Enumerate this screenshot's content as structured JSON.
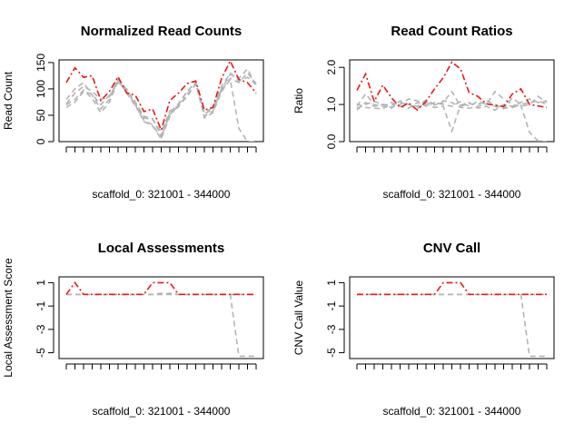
{
  "chart_data": [
    {
      "type": "line",
      "title": "Normalized Read Counts",
      "xlabel": "scaffold_0: 321001 - 344000",
      "ylabel": "Read Count",
      "ylim": [
        0,
        155
      ],
      "yticks": [
        0,
        50,
        100,
        150
      ],
      "x": [
        1,
        2,
        3,
        4,
        5,
        6,
        7,
        8,
        9,
        10,
        11,
        12,
        13,
        14,
        15,
        16,
        17,
        18,
        19,
        20,
        21,
        22,
        23
      ],
      "series": [
        {
          "role": "sample",
          "color": "#e41a1c",
          "values": [
            112,
            140,
            122,
            125,
            78,
            95,
            123,
            92,
            88,
            57,
            62,
            22,
            78,
            92,
            110,
            115,
            60,
            65,
            120,
            153,
            118,
            112,
            92
          ]
        },
        {
          "role": "reference",
          "color": "#b4b4b4",
          "values": [
            80,
            100,
            112,
            88,
            62,
            80,
            120,
            98,
            75,
            48,
            44,
            12,
            55,
            72,
            95,
            112,
            52,
            62,
            100,
            128,
            120,
            138,
            105
          ]
        },
        {
          "role": "reference",
          "color": "#b4b4b4",
          "values": [
            65,
            75,
            95,
            90,
            70,
            88,
            112,
            100,
            72,
            45,
            42,
            18,
            58,
            68,
            85,
            110,
            48,
            58,
            98,
            120,
            112,
            130,
            110
          ]
        },
        {
          "role": "reference",
          "color": "#b4b4b4",
          "values": [
            72,
            92,
            105,
            95,
            80,
            85,
            118,
            92,
            68,
            40,
            32,
            8,
            52,
            66,
            90,
            108,
            55,
            65,
            105,
            130,
            115,
            122,
            108
          ]
        },
        {
          "role": "reference",
          "color": "#b4b4b4",
          "values": [
            70,
            80,
            98,
            82,
            55,
            75,
            115,
            95,
            70,
            38,
            30,
            5,
            48,
            70,
            95,
            114,
            45,
            55,
            95,
            118,
            25,
            0,
            0
          ]
        }
      ]
    },
    {
      "type": "line",
      "title": "Read Count Ratios",
      "xlabel": "scaffold_0: 321001 - 344000",
      "ylabel": "Ratio",
      "ylim": [
        0,
        2.2
      ],
      "yticks": [
        0.0,
        1.0,
        2.0
      ],
      "ytick_labels": [
        "0.0",
        "1.0",
        "2.0"
      ],
      "x": [
        1,
        2,
        3,
        4,
        5,
        6,
        7,
        8,
        9,
        10,
        11,
        12,
        13,
        14,
        15,
        16,
        17,
        18,
        19,
        20,
        21,
        22,
        23
      ],
      "series": [
        {
          "role": "sample",
          "color": "#e41a1c",
          "values": [
            1.38,
            1.82,
            1.08,
            1.52,
            1.18,
            0.92,
            1.04,
            0.85,
            1.08,
            1.42,
            1.72,
            2.14,
            1.96,
            1.32,
            1.22,
            1.02,
            0.98,
            0.94,
            1.28,
            1.42,
            1.0,
            0.96,
            0.92
          ]
        },
        {
          "role": "reference",
          "color": "#b4b4b4",
          "values": [
            0.95,
            1.28,
            1.0,
            0.95,
            0.9,
            1.1,
            1.0,
            0.95,
            1.12,
            1.0,
            1.05,
            1.35,
            0.95,
            1.02,
            1.0,
            1.1,
            1.0,
            0.88,
            1.18,
            1.0,
            1.05,
            1.1,
            1.0
          ]
        },
        {
          "role": "reference",
          "color": "#b4b4b4",
          "values": [
            0.85,
            1.05,
            0.95,
            1.0,
            0.92,
            1.0,
            1.15,
            1.1,
            0.95,
            1.05,
            1.0,
            0.95,
            1.08,
            0.95,
            1.08,
            1.0,
            1.35,
            1.15,
            1.0,
            0.95,
            1.0,
            1.22,
            1.05
          ]
        },
        {
          "role": "reference",
          "color": "#b4b4b4",
          "values": [
            1.02,
            0.92,
            0.9,
            0.88,
            1.05,
            0.95,
            0.9,
            1.05,
            1.0,
            0.92,
            0.95,
            0.28,
            0.98,
            1.05,
            0.9,
            0.95,
            0.85,
            1.0,
            0.95,
            1.05,
            1.15,
            1.05,
            1.1
          ]
        },
        {
          "role": "reference",
          "color": "#b4b4b4",
          "values": [
            0.9,
            1.0,
            1.08,
            1.0,
            0.98,
            1.05,
            1.0,
            0.9,
            1.05,
            0.98,
            1.1,
            1.05,
            0.92,
            0.9,
            0.95,
            1.02,
            0.95,
            0.9,
            0.92,
            0.98,
            0.25,
            0.02,
            0.0
          ]
        }
      ]
    },
    {
      "type": "line",
      "title": "Local Assessments",
      "xlabel": "scaffold_0: 321001 - 344000",
      "ylabel": "Local Assessment Score",
      "ylim": [
        -5.5,
        1.5
      ],
      "yticks": [
        1,
        -1,
        -3,
        -5
      ],
      "ytick_labels": [
        "1",
        "-1",
        "-3",
        "-5"
      ],
      "x": [
        1,
        2,
        3,
        4,
        5,
        6,
        7,
        8,
        9,
        10,
        11,
        12,
        13,
        14,
        15,
        16,
        17,
        18,
        19,
        20,
        21,
        22,
        23
      ],
      "series": [
        {
          "role": "sample",
          "color": "#e41a1c",
          "values": [
            0,
            1,
            0,
            0,
            0,
            0,
            0,
            0,
            0,
            0,
            1,
            1,
            1,
            0,
            0,
            0,
            0,
            0,
            0,
            0,
            0,
            0,
            0
          ]
        },
        {
          "role": "reference",
          "color": "#b4b4b4",
          "values": [
            0,
            0,
            0,
            0,
            0,
            0,
            0,
            0,
            0,
            0,
            0,
            0.1,
            0,
            0,
            0,
            0,
            0,
            0,
            0,
            0,
            0,
            0,
            0
          ]
        },
        {
          "role": "reference",
          "color": "#b4b4b4",
          "values": [
            0,
            0,
            0,
            0,
            0,
            0,
            0,
            0,
            0,
            0,
            0,
            0,
            0.1,
            0,
            0,
            0,
            0,
            0,
            0,
            0,
            0,
            0,
            0
          ]
        },
        {
          "role": "reference",
          "color": "#b4b4b4",
          "values": [
            0,
            0,
            0,
            0,
            0,
            0,
            0,
            0,
            0,
            0,
            0,
            0,
            0,
            0,
            0,
            0,
            0,
            0,
            0,
            0,
            0,
            0,
            0
          ]
        },
        {
          "role": "reference",
          "color": "#b4b4b4",
          "values": [
            0,
            0,
            0,
            0,
            0,
            0,
            0,
            0,
            0,
            0,
            0,
            0,
            0,
            0,
            0,
            0,
            0,
            0,
            0,
            0,
            -5.3,
            -5.3,
            -5.3
          ]
        }
      ]
    },
    {
      "type": "line",
      "title": "CNV Call",
      "xlabel": "scaffold_0: 321001 - 344000",
      "ylabel": "CNV Call Value",
      "ylim": [
        -5.5,
        1.5
      ],
      "yticks": [
        1,
        -1,
        -3,
        -5
      ],
      "ytick_labels": [
        "1",
        "-1",
        "-3",
        "-5"
      ],
      "x": [
        1,
        2,
        3,
        4,
        5,
        6,
        7,
        8,
        9,
        10,
        11,
        12,
        13,
        14,
        15,
        16,
        17,
        18,
        19,
        20,
        21,
        22,
        23
      ],
      "series": [
        {
          "role": "sample",
          "color": "#e41a1c",
          "values": [
            0,
            0,
            0,
            0,
            0,
            0,
            0,
            0,
            0,
            0,
            1,
            1,
            1,
            0,
            0,
            0,
            0,
            0,
            0,
            0,
            0,
            0,
            0
          ]
        },
        {
          "role": "reference",
          "color": "#b4b4b4",
          "values": [
            0,
            0,
            0,
            0,
            0,
            0,
            0,
            0,
            0,
            0,
            0,
            0,
            0,
            0,
            0,
            0,
            0,
            0,
            0,
            0,
            0,
            0,
            0
          ]
        },
        {
          "role": "reference",
          "color": "#b4b4b4",
          "values": [
            0,
            0,
            0,
            0,
            0,
            0,
            0,
            0,
            0,
            0,
            0,
            0,
            0,
            0,
            0,
            0,
            0,
            0,
            0,
            0,
            0,
            0,
            0
          ]
        },
        {
          "role": "reference",
          "color": "#b4b4b4",
          "values": [
            0,
            0,
            0,
            0,
            0,
            0,
            0,
            0,
            0,
            0,
            0,
            0,
            0,
            0,
            0,
            0,
            0,
            0,
            0,
            0,
            -5.3,
            -5.3,
            -5.3
          ]
        }
      ]
    }
  ]
}
